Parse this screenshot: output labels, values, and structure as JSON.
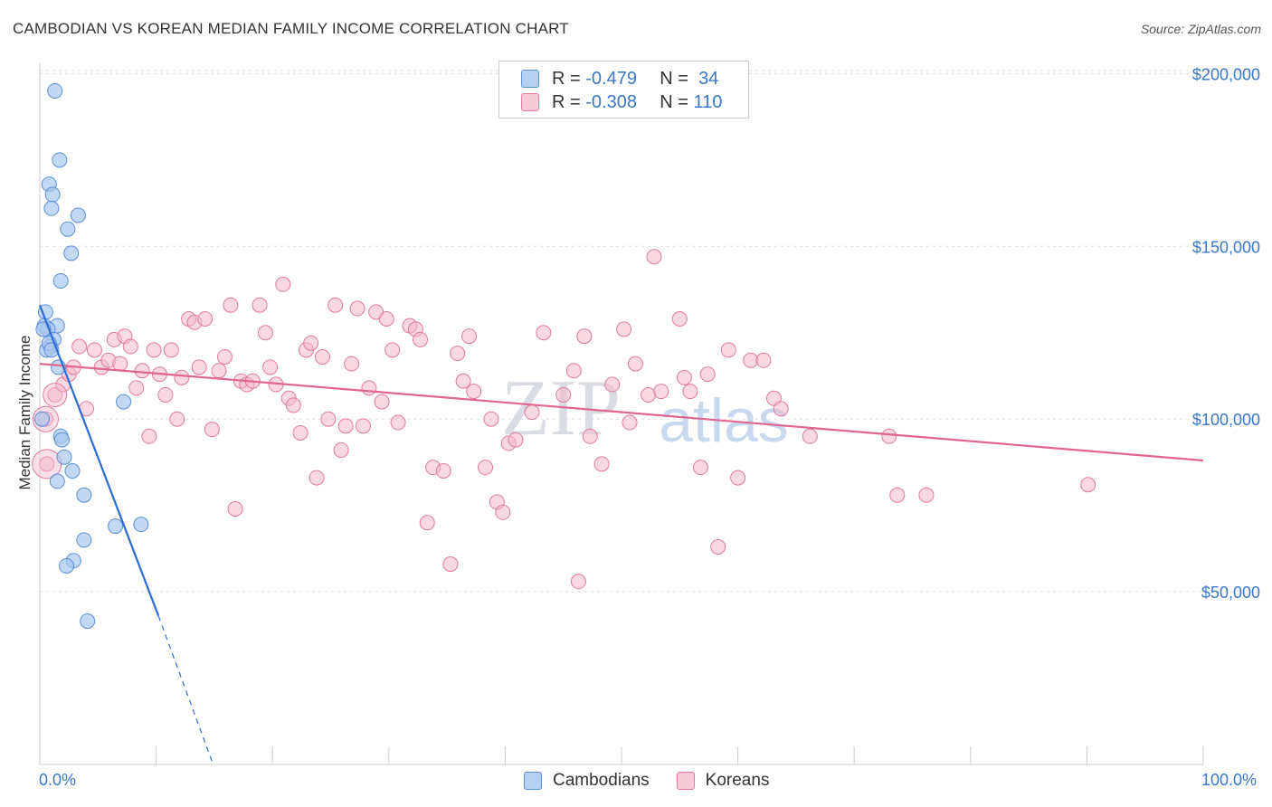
{
  "title": "CAMBODIAN VS KOREAN MEDIAN FAMILY INCOME CORRELATION CHART",
  "source": "Source: ZipAtlas.com",
  "watermark": {
    "zip": "ZIP",
    "atlas": "atlas"
  },
  "colors": {
    "cambodian_fill": "#a9c8f0",
    "cambodian_stroke": "#5b8fd6",
    "cambodian_line": "#2d6cd6",
    "korean_fill": "#f4b8cb",
    "korean_stroke": "#e07aa0",
    "korean_line": "#e0658f",
    "axis_text": "#3a78c9",
    "grid": "#dddddd"
  },
  "legend": {
    "rows": [
      {
        "r_label": "R =",
        "r_value": "-0.479",
        "n_label": "N =",
        "n_value": "34"
      },
      {
        "r_label": "R =",
        "r_value": "-0.308",
        "n_label": "N =",
        "n_value": "110"
      }
    ]
  },
  "bottom_legend": {
    "cambodians": "Cambodians",
    "koreans": "Koreans"
  },
  "chart_data": {
    "type": "scatter",
    "title": "CAMBODIAN VS KOREAN MEDIAN FAMILY INCOME CORRELATION CHART",
    "xlabel": "",
    "ylabel": "Median Family Income",
    "xlim": [
      0,
      100
    ],
    "ylim": [
      0,
      210000
    ],
    "x_tick_labels": [
      "0.0%",
      "100.0%"
    ],
    "y_ticks": [
      50000,
      100000,
      150000,
      200000
    ],
    "y_tick_labels": [
      "$50,000",
      "$100,000",
      "$150,000",
      "$200,000"
    ],
    "series": [
      {
        "name": "Cambodians",
        "R": -0.479,
        "N": 34,
        "trend": {
          "x0": 0,
          "y0": 133000,
          "x1": 10.2,
          "y1": 43000,
          "dash_to_x": 14.9,
          "dash_to_y": 0
        },
        "points": [
          [
            1.3,
            195000
          ],
          [
            1.7,
            175000
          ],
          [
            0.8,
            168000
          ],
          [
            1.1,
            165000
          ],
          [
            1.0,
            161000
          ],
          [
            3.3,
            159000
          ],
          [
            2.4,
            155000
          ],
          [
            2.7,
            148000
          ],
          [
            1.8,
            140000
          ],
          [
            0.5,
            131000
          ],
          [
            0.4,
            127000
          ],
          [
            1.5,
            127000
          ],
          [
            0.7,
            126000
          ],
          [
            1.2,
            123000
          ],
          [
            0.9,
            121000
          ],
          [
            0.6,
            120000
          ],
          [
            1.6,
            115000
          ],
          [
            7.2,
            105000
          ],
          [
            0.2,
            100000
          ],
          [
            1.8,
            95000
          ],
          [
            2.1,
            89000
          ],
          [
            2.8,
            85000
          ],
          [
            1.5,
            82000
          ],
          [
            3.8,
            78000
          ],
          [
            6.5,
            69000
          ],
          [
            8.7,
            69500
          ],
          [
            3.8,
            65000
          ],
          [
            2.9,
            59000
          ],
          [
            2.3,
            57500
          ],
          [
            4.1,
            41500
          ],
          [
            0.3,
            126000
          ],
          [
            0.8,
            122000
          ],
          [
            1.0,
            120000
          ],
          [
            1.9,
            94000
          ]
        ]
      },
      {
        "name": "Koreans",
        "R": -0.308,
        "N": 110,
        "trend": {
          "x0": 0,
          "y0": 116000,
          "x1": 100,
          "y1": 88000
        },
        "points": [
          [
            0.5,
            100000
          ],
          [
            0.6,
            87000
          ],
          [
            1.3,
            107000
          ],
          [
            2.0,
            110000
          ],
          [
            2.5,
            113000
          ],
          [
            2.9,
            115000
          ],
          [
            3.4,
            121000
          ],
          [
            4.0,
            103000
          ],
          [
            4.7,
            120000
          ],
          [
            5.3,
            115000
          ],
          [
            5.9,
            117000
          ],
          [
            6.4,
            123000
          ],
          [
            6.9,
            116000
          ],
          [
            7.3,
            124000
          ],
          [
            7.8,
            121000
          ],
          [
            8.3,
            109000
          ],
          [
            8.8,
            114000
          ],
          [
            9.4,
            95000
          ],
          [
            9.8,
            120000
          ],
          [
            10.3,
            113000
          ],
          [
            10.8,
            107000
          ],
          [
            11.3,
            120000
          ],
          [
            11.8,
            100000
          ],
          [
            12.2,
            112000
          ],
          [
            12.8,
            129000
          ],
          [
            13.3,
            128000
          ],
          [
            13.7,
            115000
          ],
          [
            14.2,
            129000
          ],
          [
            14.8,
            97000
          ],
          [
            15.4,
            114000
          ],
          [
            15.9,
            118000
          ],
          [
            16.4,
            133000
          ],
          [
            16.8,
            74000
          ],
          [
            17.3,
            111000
          ],
          [
            17.8,
            110000
          ],
          [
            18.3,
            111000
          ],
          [
            18.9,
            133000
          ],
          [
            19.4,
            125000
          ],
          [
            19.8,
            115000
          ],
          [
            20.3,
            110000
          ],
          [
            20.9,
            139000
          ],
          [
            21.4,
            106000
          ],
          [
            21.8,
            104000
          ],
          [
            22.4,
            96000
          ],
          [
            22.9,
            120000
          ],
          [
            23.3,
            122000
          ],
          [
            23.8,
            83000
          ],
          [
            24.3,
            118000
          ],
          [
            24.8,
            100000
          ],
          [
            25.4,
            133000
          ],
          [
            25.9,
            91000
          ],
          [
            26.3,
            98000
          ],
          [
            26.8,
            116000
          ],
          [
            27.3,
            132000
          ],
          [
            27.8,
            98000
          ],
          [
            28.3,
            109000
          ],
          [
            28.9,
            131000
          ],
          [
            29.4,
            105000
          ],
          [
            29.8,
            129000
          ],
          [
            30.3,
            120000
          ],
          [
            30.8,
            99000
          ],
          [
            31.8,
            127000
          ],
          [
            32.3,
            126000
          ],
          [
            32.7,
            123000
          ],
          [
            33.3,
            70000
          ],
          [
            33.8,
            86000
          ],
          [
            34.7,
            85000
          ],
          [
            35.3,
            58000
          ],
          [
            35.9,
            119000
          ],
          [
            36.4,
            111000
          ],
          [
            36.9,
            124000
          ],
          [
            37.3,
            108000
          ],
          [
            38.3,
            86000
          ],
          [
            38.8,
            100000
          ],
          [
            39.3,
            76000
          ],
          [
            39.8,
            73000
          ],
          [
            40.3,
            93000
          ],
          [
            40.9,
            94000
          ],
          [
            42.3,
            102000
          ],
          [
            43.3,
            125000
          ],
          [
            45.0,
            107000
          ],
          [
            45.9,
            114000
          ],
          [
            46.3,
            53000
          ],
          [
            46.8,
            124000
          ],
          [
            47.3,
            95000
          ],
          [
            48.3,
            87000
          ],
          [
            49.2,
            110000
          ],
          [
            50.2,
            126000
          ],
          [
            50.7,
            99000
          ],
          [
            51.2,
            116000
          ],
          [
            52.3,
            107000
          ],
          [
            52.8,
            147000
          ],
          [
            53.4,
            108000
          ],
          [
            55.0,
            129000
          ],
          [
            55.4,
            112000
          ],
          [
            55.9,
            108000
          ],
          [
            56.8,
            86000
          ],
          [
            57.4,
            113000
          ],
          [
            58.3,
            63000
          ],
          [
            59.2,
            120000
          ],
          [
            60.0,
            83000
          ],
          [
            61.1,
            117000
          ],
          [
            62.2,
            117000
          ],
          [
            63.1,
            106000
          ],
          [
            63.7,
            103000
          ],
          [
            66.2,
            95000
          ],
          [
            73.0,
            95000
          ],
          [
            73.7,
            78000
          ],
          [
            76.2,
            78000
          ],
          [
            90.1,
            81000
          ]
        ]
      }
    ]
  }
}
